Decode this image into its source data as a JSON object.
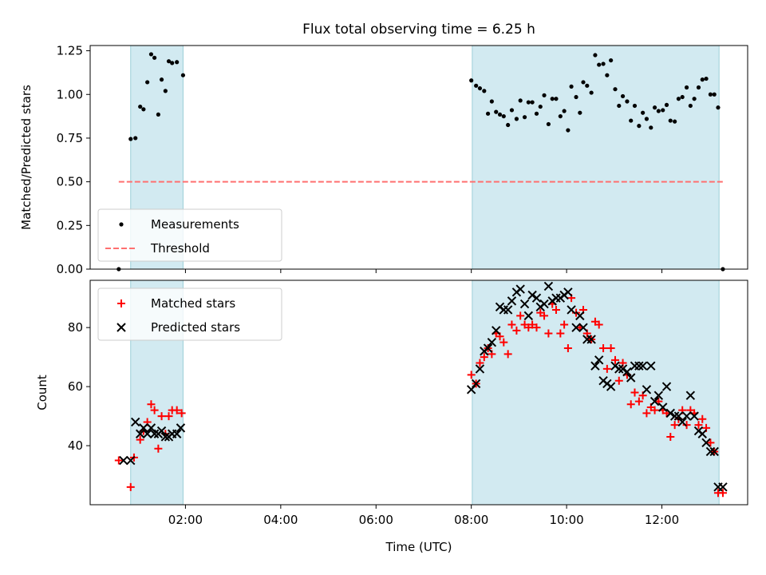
{
  "chart_data": {
    "type": "scatter",
    "title": "Flux total observing time = 6.25 h",
    "xlabel": "Time (UTC)",
    "x_unit": "hours UTC",
    "xlim": [
      0.0,
      13.8
    ],
    "x_tick_values": [
      2,
      4,
      6,
      8,
      10,
      12
    ],
    "x_tick_labels": [
      "02:00",
      "04:00",
      "06:00",
      "08:00",
      "10:00",
      "12:00"
    ],
    "shaded_intervals": [
      [
        0.85,
        1.95
      ],
      [
        8.02,
        13.2
      ]
    ],
    "shade_color": "#add8e6",
    "panels": [
      {
        "ylabel": "Matched/Predicted stars",
        "ylim": [
          0.0,
          1.28
        ],
        "y_tick_values": [
          0.0,
          0.25,
          0.5,
          0.75,
          1.0,
          1.25
        ],
        "y_tick_labels": [
          "0.00",
          "0.25",
          "0.50",
          "0.75",
          "1.00",
          "1.25"
        ],
        "legend_location": "lower-left",
        "series": [
          {
            "name": "Measurements",
            "marker": "dot",
            "color": "#000000",
            "points": [
              [
                0.6,
                0.0
              ],
              [
                0.85,
                0.745
              ],
              [
                0.95,
                0.75
              ],
              [
                1.05,
                0.93
              ],
              [
                1.12,
                0.915
              ],
              [
                1.2,
                1.07
              ],
              [
                1.28,
                1.23
              ],
              [
                1.35,
                1.21
              ],
              [
                1.43,
                0.885
              ],
              [
                1.5,
                1.085
              ],
              [
                1.58,
                1.02
              ],
              [
                1.65,
                1.19
              ],
              [
                1.72,
                1.18
              ],
              [
                1.82,
                1.185
              ],
              [
                1.95,
                1.11
              ],
              [
                8.0,
                1.08
              ],
              [
                8.1,
                1.05
              ],
              [
                8.18,
                1.035
              ],
              [
                8.27,
                1.02
              ],
              [
                8.35,
                0.89
              ],
              [
                8.43,
                0.96
              ],
              [
                8.52,
                0.9
              ],
              [
                8.6,
                0.885
              ],
              [
                8.68,
                0.875
              ],
              [
                8.77,
                0.825
              ],
              [
                8.85,
                0.91
              ],
              [
                8.95,
                0.86
              ],
              [
                9.03,
                0.965
              ],
              [
                9.12,
                0.87
              ],
              [
                9.2,
                0.955
              ],
              [
                9.28,
                0.955
              ],
              [
                9.37,
                0.89
              ],
              [
                9.45,
                0.93
              ],
              [
                9.53,
                0.995
              ],
              [
                9.62,
                0.83
              ],
              [
                9.7,
                0.975
              ],
              [
                9.78,
                0.975
              ],
              [
                9.87,
                0.875
              ],
              [
                9.95,
                0.905
              ],
              [
                10.03,
                0.795
              ],
              [
                10.1,
                1.045
              ],
              [
                10.2,
                0.985
              ],
              [
                10.28,
                0.895
              ],
              [
                10.35,
                1.07
              ],
              [
                10.43,
                1.05
              ],
              [
                10.52,
                1.01
              ],
              [
                10.6,
                1.225
              ],
              [
                10.68,
                1.17
              ],
              [
                10.77,
                1.175
              ],
              [
                10.85,
                1.11
              ],
              [
                10.93,
                1.195
              ],
              [
                11.02,
                1.03
              ],
              [
                11.1,
                0.935
              ],
              [
                11.18,
                0.99
              ],
              [
                11.27,
                0.96
              ],
              [
                11.35,
                0.85
              ],
              [
                11.43,
                0.935
              ],
              [
                11.52,
                0.82
              ],
              [
                11.6,
                0.895
              ],
              [
                11.68,
                0.86
              ],
              [
                11.77,
                0.81
              ],
              [
                11.85,
                0.925
              ],
              [
                11.93,
                0.905
              ],
              [
                12.02,
                0.91
              ],
              [
                12.1,
                0.94
              ],
              [
                12.18,
                0.85
              ],
              [
                12.27,
                0.845
              ],
              [
                12.35,
                0.975
              ],
              [
                12.43,
                0.985
              ],
              [
                12.52,
                1.04
              ],
              [
                12.6,
                0.935
              ],
              [
                12.68,
                0.975
              ],
              [
                12.77,
                1.04
              ],
              [
                12.85,
                1.085
              ],
              [
                12.93,
                1.09
              ],
              [
                13.02,
                1.0
              ],
              [
                13.1,
                1.0
              ],
              [
                13.18,
                0.925
              ],
              [
                13.28,
                0.0
              ]
            ]
          },
          {
            "name": "Threshold",
            "marker": "dashed-line",
            "color": "#ff7070",
            "points": [
              [
                0.6,
                0.5
              ],
              [
                13.28,
                0.5
              ]
            ]
          }
        ]
      },
      {
        "ylabel": "Count",
        "ylim": [
          20.0,
          96.0
        ],
        "y_tick_values": [
          40,
          60,
          80
        ],
        "y_tick_labels": [
          "40",
          "60",
          "80"
        ],
        "legend_location": "upper-left",
        "series": [
          {
            "name": "Matched stars",
            "marker": "plus",
            "color": "#ff0000",
            "points": [
              [
                0.6,
                35
              ],
              [
                0.85,
                26
              ],
              [
                0.92,
                36
              ],
              [
                1.05,
                42
              ],
              [
                1.12,
                45
              ],
              [
                1.2,
                48
              ],
              [
                1.28,
                54
              ],
              [
                1.35,
                52
              ],
              [
                1.43,
                39
              ],
              [
                1.5,
                50
              ],
              [
                1.58,
                44
              ],
              [
                1.65,
                50
              ],
              [
                1.72,
                52
              ],
              [
                1.82,
                52
              ],
              [
                1.92,
                51
              ],
              [
                8.0,
                64
              ],
              [
                8.1,
                61
              ],
              [
                8.18,
                68
              ],
              [
                8.27,
                70
              ],
              [
                8.35,
                73
              ],
              [
                8.43,
                71
              ],
              [
                8.52,
                78
              ],
              [
                8.6,
                77
              ],
              [
                8.68,
                75
              ],
              [
                8.77,
                71
              ],
              [
                8.85,
                81
              ],
              [
                8.95,
                79
              ],
              [
                9.03,
                84
              ],
              [
                9.12,
                81
              ],
              [
                9.2,
                80
              ],
              [
                9.28,
                81
              ],
              [
                9.37,
                80
              ],
              [
                9.45,
                85
              ],
              [
                9.53,
                84
              ],
              [
                9.62,
                78
              ],
              [
                9.7,
                88
              ],
              [
                9.78,
                86
              ],
              [
                9.87,
                78
              ],
              [
                9.95,
                81
              ],
              [
                10.03,
                73
              ],
              [
                10.1,
                90
              ],
              [
                10.2,
                85
              ],
              [
                10.28,
                80
              ],
              [
                10.35,
                86
              ],
              [
                10.43,
                78
              ],
              [
                10.52,
                76
              ],
              [
                10.6,
                82
              ],
              [
                10.68,
                81
              ],
              [
                10.77,
                73
              ],
              [
                10.85,
                66
              ],
              [
                10.93,
                73
              ],
              [
                11.02,
                69
              ],
              [
                11.1,
                62
              ],
              [
                11.18,
                68
              ],
              [
                11.27,
                64
              ],
              [
                11.35,
                54
              ],
              [
                11.43,
                58
              ],
              [
                11.52,
                55
              ],
              [
                11.6,
                57
              ],
              [
                11.68,
                51
              ],
              [
                11.77,
                53
              ],
              [
                11.85,
                52
              ],
              [
                11.93,
                55
              ],
              [
                12.02,
                52
              ],
              [
                12.1,
                51
              ],
              [
                12.18,
                43
              ],
              [
                12.27,
                47
              ],
              [
                12.35,
                49
              ],
              [
                12.43,
                52
              ],
              [
                12.52,
                47
              ],
              [
                12.6,
                52
              ],
              [
                12.68,
                51
              ],
              [
                12.77,
                47
              ],
              [
                12.85,
                49
              ],
              [
                12.93,
                46
              ],
              [
                13.02,
                41
              ],
              [
                13.1,
                38
              ],
              [
                13.18,
                24
              ],
              [
                13.28,
                24
              ]
            ]
          },
          {
            "name": "Predicted stars",
            "marker": "x",
            "color": "#000000",
            "points": [
              [
                0.7,
                35
              ],
              [
                0.85,
                35
              ],
              [
                0.95,
                48
              ],
              [
                1.05,
                44
              ],
              [
                1.12,
                46
              ],
              [
                1.2,
                44
              ],
              [
                1.28,
                46
              ],
              [
                1.35,
                44
              ],
              [
                1.43,
                44
              ],
              [
                1.5,
                45
              ],
              [
                1.58,
                43
              ],
              [
                1.65,
                43
              ],
              [
                1.72,
                44
              ],
              [
                1.82,
                44
              ],
              [
                1.9,
                46
              ],
              [
                8.0,
                59
              ],
              [
                8.1,
                61
              ],
              [
                8.18,
                66
              ],
              [
                8.27,
                72
              ],
              [
                8.35,
                73
              ],
              [
                8.43,
                75
              ],
              [
                8.52,
                79
              ],
              [
                8.6,
                87
              ],
              [
                8.68,
                86
              ],
              [
                8.77,
                86
              ],
              [
                8.85,
                89
              ],
              [
                8.95,
                92
              ],
              [
                9.03,
                93
              ],
              [
                9.12,
                88
              ],
              [
                9.2,
                84
              ],
              [
                9.28,
                91
              ],
              [
                9.37,
                90
              ],
              [
                9.45,
                87
              ],
              [
                9.53,
                88
              ],
              [
                9.62,
                94
              ],
              [
                9.7,
                89
              ],
              [
                9.78,
                90
              ],
              [
                9.87,
                90
              ],
              [
                9.95,
                91
              ],
              [
                10.03,
                92
              ],
              [
                10.1,
                86
              ],
              [
                10.2,
                80
              ],
              [
                10.28,
                84
              ],
              [
                10.35,
                80
              ],
              [
                10.43,
                76
              ],
              [
                10.52,
                76
              ],
              [
                10.6,
                67
              ],
              [
                10.68,
                69
              ],
              [
                10.77,
                62
              ],
              [
                10.85,
                61
              ],
              [
                10.93,
                60
              ],
              [
                11.02,
                67
              ],
              [
                11.1,
                66
              ],
              [
                11.18,
                66
              ],
              [
                11.27,
                65
              ],
              [
                11.35,
                63
              ],
              [
                11.43,
                67
              ],
              [
                11.52,
                67
              ],
              [
                11.6,
                67
              ],
              [
                11.68,
                59
              ],
              [
                11.77,
                67
              ],
              [
                11.85,
                55
              ],
              [
                11.93,
                57
              ],
              [
                12.02,
                53
              ],
              [
                12.1,
                60
              ],
              [
                12.18,
                51
              ],
              [
                12.27,
                50
              ],
              [
                12.35,
                50
              ],
              [
                12.43,
                48
              ],
              [
                12.52,
                50
              ],
              [
                12.6,
                57
              ],
              [
                12.68,
                50
              ],
              [
                12.77,
                45
              ],
              [
                12.85,
                44
              ],
              [
                12.93,
                41
              ],
              [
                13.02,
                38
              ],
              [
                13.1,
                38
              ],
              [
                13.18,
                26
              ],
              [
                13.28,
                26
              ]
            ]
          }
        ]
      }
    ]
  }
}
